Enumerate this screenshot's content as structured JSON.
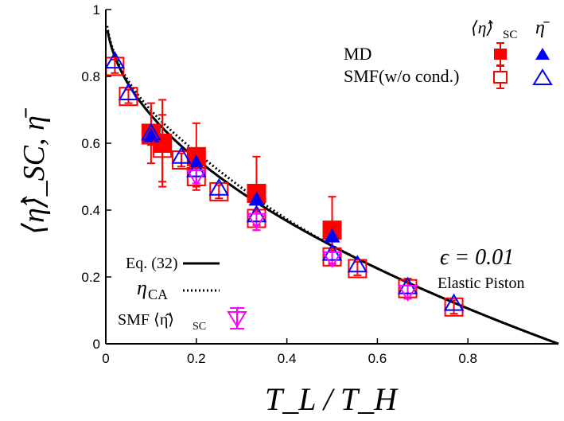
{
  "chart_data": {
    "type": "scatter",
    "title": "",
    "xlabel": "T_L / T_H",
    "ylabel": "⟨η̂⟩_SC, η̄",
    "xlim": [
      0,
      1
    ],
    "ylim": [
      0,
      1
    ],
    "x_ticks": [
      0,
      0.2,
      0.4,
      0.6,
      0.8
    ],
    "y_ticks": [
      0,
      0.2,
      0.4,
      0.6,
      0.8,
      1
    ],
    "x_tick_labels": [
      "0",
      "0.2",
      "0.4",
      "0.6",
      "0.8"
    ],
    "y_tick_labels": [
      "0",
      "0.2",
      "0.4",
      "0.6",
      "0.8",
      "1"
    ],
    "legend_header": {
      "col1": "⟨η̂⟩",
      "col1_sub": "SC",
      "col2": "η̄"
    },
    "legend_rows": [
      {
        "label": "MD",
        "color": "#ff0000",
        "style": "filled"
      },
      {
        "label": "SMF(w/o cond.)",
        "color": "#ff0000",
        "style": "open"
      }
    ],
    "line_legend": [
      {
        "label": "Eq. (32)",
        "style": "solid"
      },
      {
        "label": "η",
        "sub": "CA",
        "style": "dotted"
      }
    ],
    "smf_legend": {
      "label": "SMF ⟨η̂⟩",
      "sub": "SC",
      "color": "#ff00ff"
    },
    "annotations": {
      "epsilon": "ϵ = 0.01",
      "piston": "Elastic Piston"
    },
    "series": [
      {
        "name": "MD ⟨η̂⟩SC",
        "marker": "filled-square",
        "color": "#ff0000",
        "points": [
          {
            "x": 0.1,
            "y": 0.63,
            "err": 0.09
          },
          {
            "x": 0.125,
            "y": 0.6,
            "err": 0.13
          },
          {
            "x": 0.2,
            "y": 0.56,
            "err": 0.1
          },
          {
            "x": 0.333,
            "y": 0.45,
            "err": 0.11
          },
          {
            "x": 0.5,
            "y": 0.34,
            "err": 0.1
          }
        ]
      },
      {
        "name": "MD η̄",
        "marker": "filled-triangle",
        "color": "#0000ff",
        "points": [
          {
            "x": 0.1,
            "y": 0.62
          },
          {
            "x": 0.2,
            "y": 0.54
          },
          {
            "x": 0.333,
            "y": 0.43
          },
          {
            "x": 0.5,
            "y": 0.32
          }
        ]
      },
      {
        "name": "SMF(w/o cond.) ⟨η̂⟩SC",
        "marker": "open-square",
        "color": "#ff0000",
        "points": [
          {
            "x": 0.02,
            "y": 0.83,
            "err": 0.02
          },
          {
            "x": 0.05,
            "y": 0.74,
            "err": 0.02
          },
          {
            "x": 0.1,
            "y": 0.625,
            "err": 0.03
          },
          {
            "x": 0.125,
            "y": 0.585,
            "err": 0.1
          },
          {
            "x": 0.167,
            "y": 0.55,
            "err": 0.02
          },
          {
            "x": 0.2,
            "y": 0.5,
            "err": 0.03
          },
          {
            "x": 0.25,
            "y": 0.455,
            "err": 0.02
          },
          {
            "x": 0.333,
            "y": 0.375,
            "err": 0.02
          },
          {
            "x": 0.5,
            "y": 0.26,
            "err": 0.02
          },
          {
            "x": 0.556,
            "y": 0.225,
            "err": 0.02
          },
          {
            "x": 0.667,
            "y": 0.165,
            "err": 0.03
          },
          {
            "x": 0.769,
            "y": 0.11,
            "err": 0.02
          }
        ]
      },
      {
        "name": "SMF(w/o cond.) η̄",
        "marker": "open-triangle",
        "color": "#0000ff",
        "points": [
          {
            "x": 0.02,
            "y": 0.845
          },
          {
            "x": 0.05,
            "y": 0.75
          },
          {
            "x": 0.1,
            "y": 0.63
          },
          {
            "x": 0.167,
            "y": 0.56
          },
          {
            "x": 0.2,
            "y": 0.52
          },
          {
            "x": 0.25,
            "y": 0.465
          },
          {
            "x": 0.333,
            "y": 0.385
          },
          {
            "x": 0.5,
            "y": 0.27
          },
          {
            "x": 0.556,
            "y": 0.235
          },
          {
            "x": 0.667,
            "y": 0.17
          },
          {
            "x": 0.769,
            "y": 0.12
          }
        ]
      },
      {
        "name": "SMF ⟨η̂⟩SC",
        "marker": "open-down-triangle",
        "color": "#ff00ff",
        "points": [
          {
            "x": 0.2,
            "y": 0.5,
            "err": 0.02
          },
          {
            "x": 0.333,
            "y": 0.37,
            "err": 0.03
          },
          {
            "x": 0.5,
            "y": 0.255,
            "err": 0.02
          },
          {
            "x": 0.667,
            "y": 0.155,
            "err": 0.02
          }
        ]
      }
    ],
    "curves": [
      {
        "name": "Eq. (32)",
        "style": "solid",
        "formula": "1 - sqrt(x)"
      },
      {
        "name": "ηCA",
        "style": "dotted",
        "formula": "1 - sqrt(x)"
      }
    ]
  }
}
